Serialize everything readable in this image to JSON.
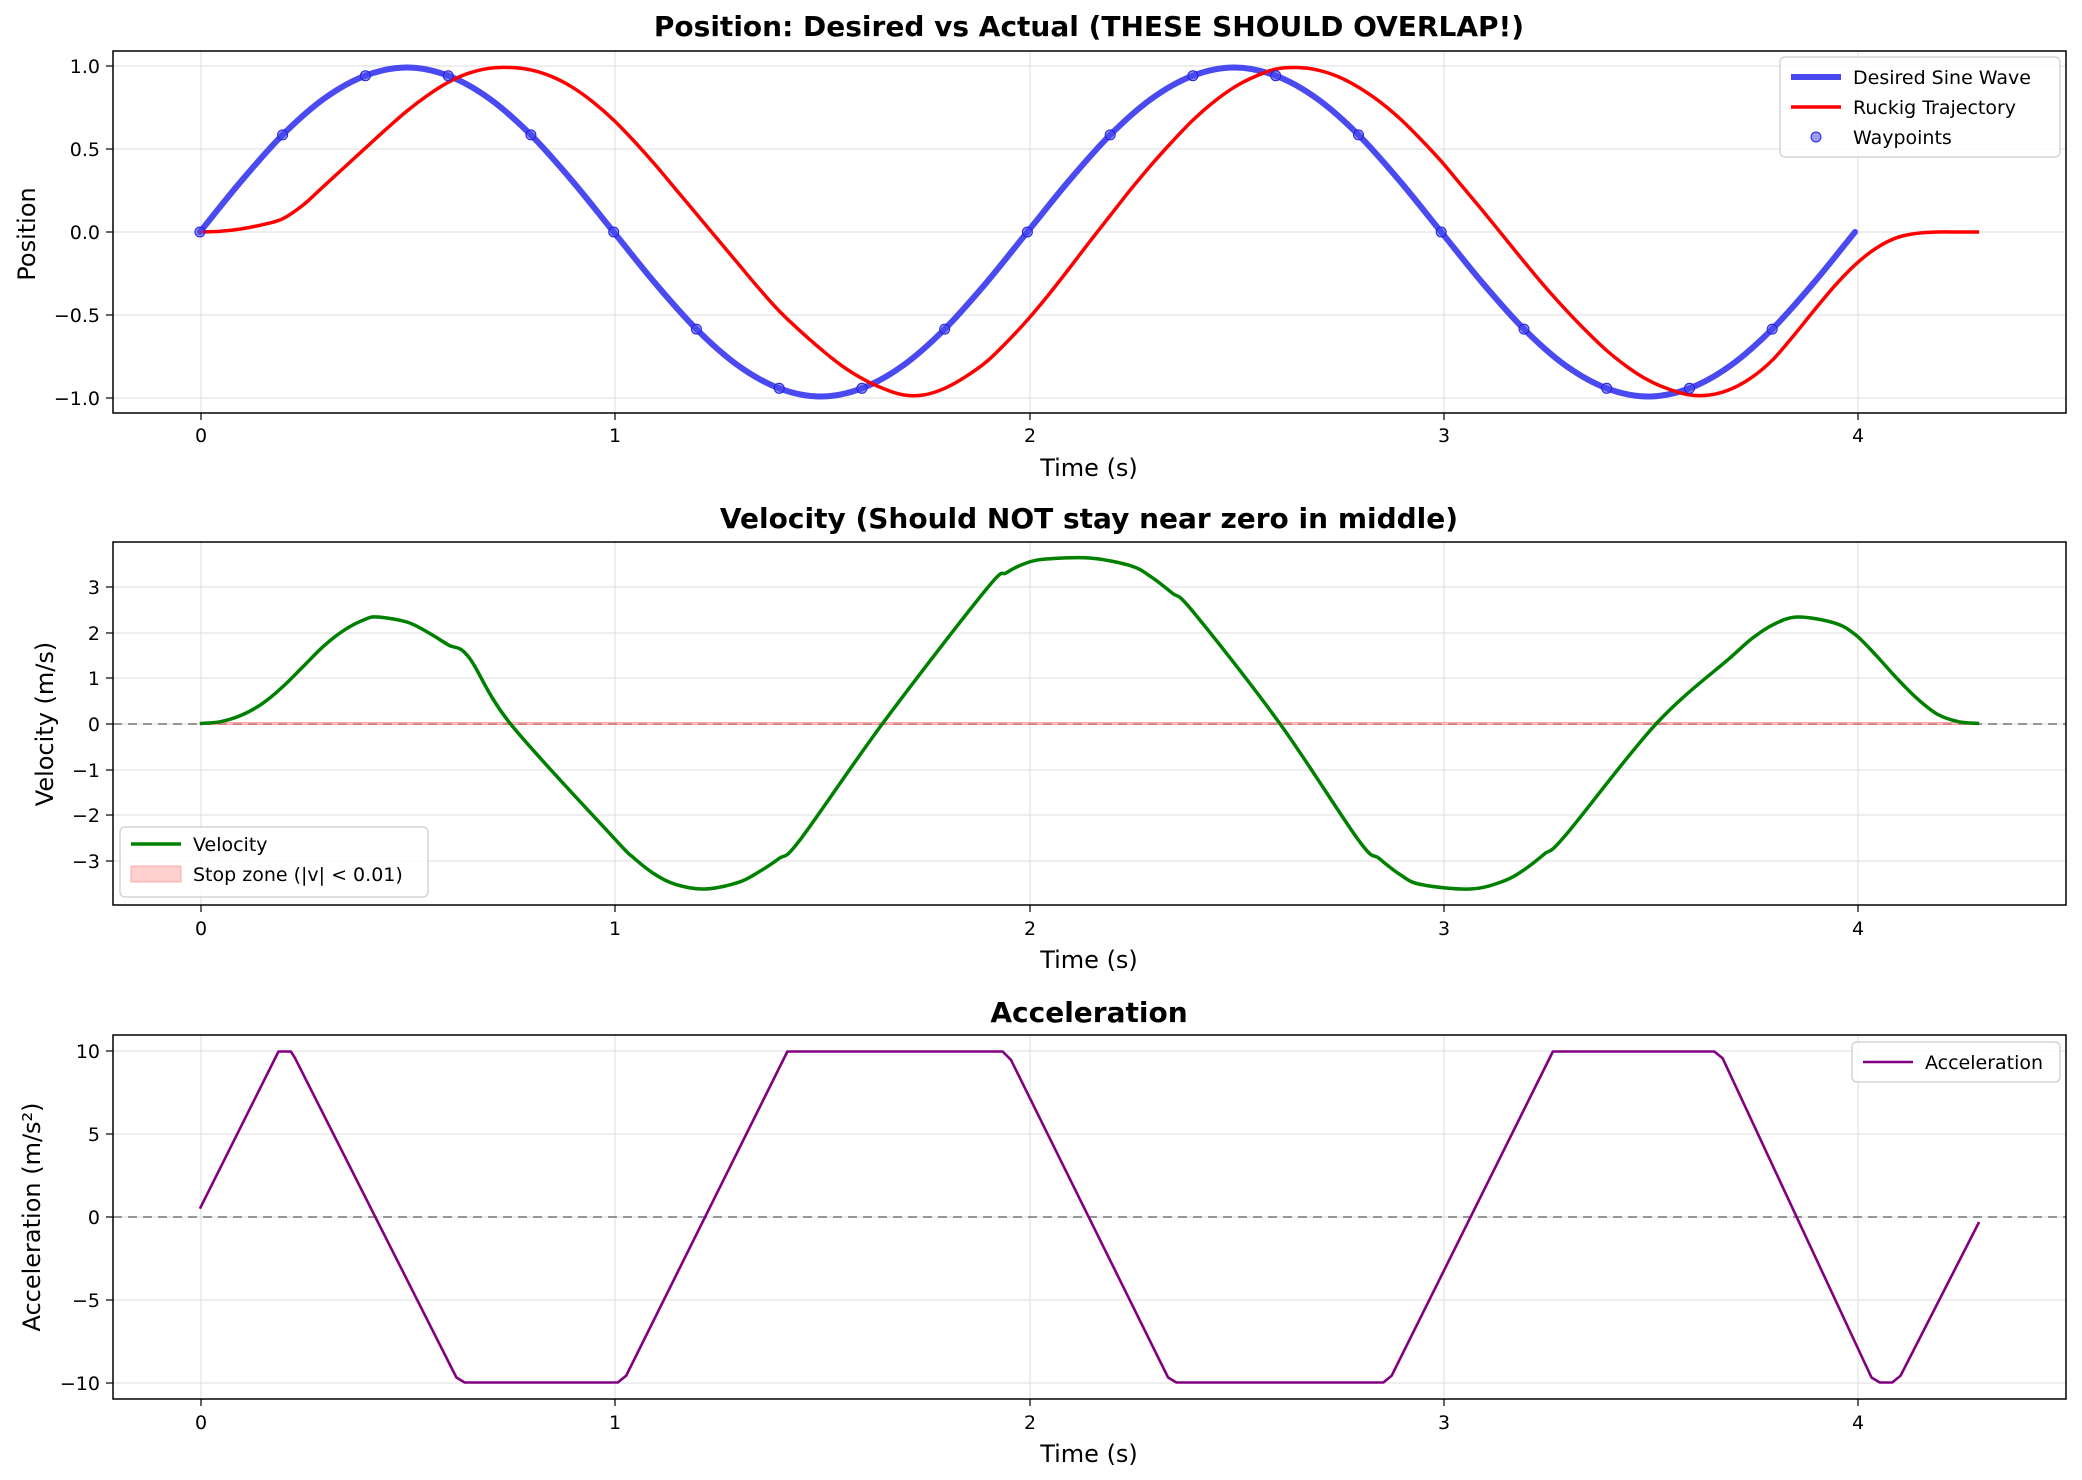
{
  "chart_data": [
    {
      "type": "line",
      "title": "Position: Desired vs Actual (THESE SHOULD OVERLAP!)",
      "xlabel": "Time (s)",
      "ylabel": "Position",
      "xlim": [
        -0.21,
        4.51
      ],
      "ylim": [
        -1.1,
        1.1
      ],
      "xticks": [
        "0",
        "1",
        "2",
        "3",
        "4"
      ],
      "yticks": [
        "1.0",
        "0.5",
        "0.0",
        "−0.5",
        "−1.0"
      ],
      "grid": true,
      "legend_position": "top-right",
      "colors": {
        "desired": "#4a4af0",
        "ruckig": "#ff0000",
        "waypoints": "#4a4af0"
      },
      "series": [
        {
          "name": "Desired Sine Wave",
          "x": [
            0,
            0.1,
            0.2,
            0.3,
            0.4,
            0.5,
            0.6,
            0.7,
            0.8,
            0.9,
            1.0,
            1.1,
            1.2,
            1.3,
            1.4,
            1.5,
            1.6,
            1.7,
            1.8,
            1.9,
            2.0,
            2.1,
            2.2,
            2.3,
            2.4,
            2.5,
            2.6,
            2.7,
            2.8,
            2.9,
            3.0,
            3.1,
            3.2,
            3.3,
            3.4,
            3.5,
            3.6,
            3.7,
            3.8,
            3.9,
            4.0
          ],
          "y": [
            0.0,
            0.31,
            0.59,
            0.81,
            0.95,
            1.0,
            0.95,
            0.81,
            0.59,
            0.31,
            0.0,
            -0.31,
            -0.59,
            -0.81,
            -0.95,
            -1.0,
            -0.95,
            -0.81,
            -0.59,
            -0.31,
            0.0,
            0.31,
            0.59,
            0.81,
            0.95,
            1.0,
            0.95,
            0.81,
            0.59,
            0.31,
            0.0,
            -0.31,
            -0.59,
            -0.81,
            -0.95,
            -1.0,
            -0.95,
            -0.81,
            -0.59,
            -0.31,
            0.0
          ]
        },
        {
          "name": "Ruckig Trajectory",
          "x": [
            0,
            0.05,
            0.1,
            0.15,
            0.2,
            0.25,
            0.3,
            0.35,
            0.4,
            0.45,
            0.5,
            0.55,
            0.6,
            0.65,
            0.7,
            0.75,
            0.8,
            0.85,
            0.9,
            0.95,
            1.0,
            1.05,
            1.1,
            1.15,
            1.2,
            1.25,
            1.3,
            1.35,
            1.4,
            1.45,
            1.5,
            1.55,
            1.6,
            1.65,
            1.7,
            1.75,
            1.8,
            1.85,
            1.9,
            1.95,
            2.0,
            2.05,
            2.1,
            2.15,
            2.2,
            2.25,
            2.3,
            2.35,
            2.4,
            2.45,
            2.5,
            2.55,
            2.6,
            2.65,
            2.7,
            2.75,
            2.8,
            2.85,
            2.9,
            2.95,
            3.0,
            3.05,
            3.1,
            3.15,
            3.2,
            3.25,
            3.3,
            3.35,
            3.4,
            3.45,
            3.5,
            3.55,
            3.6,
            3.65,
            3.7,
            3.75,
            3.8,
            3.85,
            3.9,
            3.95,
            4.0,
            4.05,
            4.1,
            4.15,
            4.2,
            4.25,
            4.3
          ],
          "y": [
            0.0,
            0.004,
            0.019,
            0.044,
            0.08,
            0.165,
            0.28,
            0.395,
            0.51,
            0.625,
            0.735,
            0.83,
            0.91,
            0.965,
            0.995,
            1.0,
            0.985,
            0.945,
            0.88,
            0.79,
            0.68,
            0.55,
            0.41,
            0.26,
            0.11,
            -0.04,
            -0.19,
            -0.34,
            -0.48,
            -0.6,
            -0.71,
            -0.81,
            -0.89,
            -0.95,
            -0.99,
            -0.99,
            -0.95,
            -0.88,
            -0.79,
            -0.67,
            -0.535,
            -0.385,
            -0.225,
            -0.06,
            0.1,
            0.26,
            0.41,
            0.55,
            0.68,
            0.79,
            0.88,
            0.945,
            0.99,
            1.0,
            0.985,
            0.945,
            0.88,
            0.795,
            0.69,
            0.565,
            0.43,
            0.28,
            0.13,
            -0.025,
            -0.18,
            -0.33,
            -0.47,
            -0.6,
            -0.72,
            -0.82,
            -0.9,
            -0.955,
            -0.99,
            -0.99,
            -0.955,
            -0.885,
            -0.78,
            -0.635,
            -0.48,
            -0.33,
            -0.2,
            -0.1,
            -0.035,
            -0.008,
            0.0,
            0.0,
            0.0
          ]
        },
        {
          "name": "Waypoints",
          "x": [
            0,
            0.2,
            0.4,
            0.6,
            0.8,
            1.0,
            1.2,
            1.4,
            1.6,
            1.8,
            2.0,
            2.2,
            2.4,
            2.6,
            2.8,
            3.0,
            3.2,
            3.4,
            3.6,
            3.8
          ],
          "y": [
            0.0,
            0.59,
            0.95,
            0.95,
            0.59,
            0.0,
            -0.59,
            -0.95,
            -0.95,
            -0.59,
            0.0,
            0.59,
            0.95,
            0.95,
            0.59,
            0.0,
            -0.59,
            -0.95,
            -0.95,
            -0.59
          ]
        }
      ]
    },
    {
      "type": "line",
      "title": "Velocity (Should NOT stay near zero in middle)",
      "xlabel": "Time (s)",
      "ylabel": "Velocity (m/s)",
      "xlim": [
        -0.21,
        4.51
      ],
      "ylim": [
        -3.97,
        3.97
      ],
      "xticks": [
        "0",
        "1",
        "2",
        "3",
        "4"
      ],
      "yticks": [
        "3",
        "2",
        "1",
        "0",
        "−1",
        "−2",
        "−3"
      ],
      "grid": true,
      "legend_position": "bottom-left",
      "colors": {
        "velocity": "#008000",
        "stop_zone": "#ffcccc",
        "zero_line": "#808080"
      },
      "series": [
        {
          "name": "Velocity",
          "x": [
            0,
            0.05,
            0.1,
            0.15,
            0.2,
            0.25,
            0.3,
            0.35,
            0.4,
            0.43,
            0.5,
            0.55,
            0.6,
            0.65,
            0.75,
            1.0,
            1.05,
            1.1,
            1.15,
            1.22,
            1.3,
            1.35,
            1.4,
            1.45,
            1.65,
            1.9,
            1.95,
            2.0,
            2.05,
            2.15,
            2.25,
            2.3,
            2.35,
            2.4,
            2.61,
            2.8,
            2.85,
            2.9,
            2.95,
            3.07,
            3.15,
            3.2,
            3.25,
            3.3,
            3.52,
            3.7,
            3.75,
            3.8,
            3.86,
            3.95,
            4.0,
            4.05,
            4.1,
            4.15,
            4.2,
            4.25,
            4.3
          ],
          "y": [
            0.0,
            0.04,
            0.18,
            0.43,
            0.8,
            1.25,
            1.7,
            2.05,
            2.28,
            2.33,
            2.22,
            2.0,
            1.72,
            1.45,
            0.0,
            -2.5,
            -2.95,
            -3.3,
            -3.52,
            -3.62,
            -3.48,
            -3.25,
            -2.95,
            -2.55,
            0.0,
            2.93,
            3.3,
            3.52,
            3.6,
            3.62,
            3.45,
            3.2,
            2.85,
            2.45,
            0.0,
            -2.55,
            -2.95,
            -3.3,
            -3.52,
            -3.62,
            -3.45,
            -3.2,
            -2.85,
            -2.45,
            0.0,
            1.45,
            1.85,
            2.15,
            2.33,
            2.2,
            1.95,
            1.5,
            1.0,
            0.55,
            0.2,
            0.04,
            0.0
          ]
        },
        {
          "name": "Stop zone (|v| < 0.01)",
          "x": [
            0,
            4.3
          ],
          "y_range": [
            -0.01,
            0.01
          ]
        }
      ]
    },
    {
      "type": "line",
      "title": "Acceleration",
      "xlabel": "Time (s)",
      "ylabel": "Acceleration (m/s²)",
      "xlim": [
        -0.21,
        4.51
      ],
      "ylim": [
        -11.0,
        11.0
      ],
      "xticks": [
        "0",
        "1",
        "2",
        "3",
        "4"
      ],
      "yticks": [
        "10",
        "5",
        "0",
        "−5",
        "−10"
      ],
      "grid": true,
      "legend_position": "top-right",
      "colors": {
        "acceleration": "#800080",
        "zero_line": "#808080"
      },
      "series": [
        {
          "name": "Acceleration",
          "x": [
            0.0,
            0.19,
            0.22,
            0.23,
            0.62,
            0.64,
            1.01,
            1.03,
            1.42,
            1.94,
            1.96,
            2.34,
            2.36,
            2.86,
            2.88,
            3.27,
            3.66,
            3.68,
            4.04,
            4.06,
            4.09,
            4.11,
            4.3
          ],
          "y": [
            0.5,
            10.0,
            10.0,
            9.6,
            -9.7,
            -10.0,
            -10.0,
            -9.6,
            10.0,
            10.0,
            9.5,
            -9.7,
            -10.0,
            -10.0,
            -9.6,
            10.0,
            10.0,
            9.6,
            -9.7,
            -10.0,
            -10.0,
            -9.6,
            -0.3
          ]
        }
      ]
    }
  ]
}
